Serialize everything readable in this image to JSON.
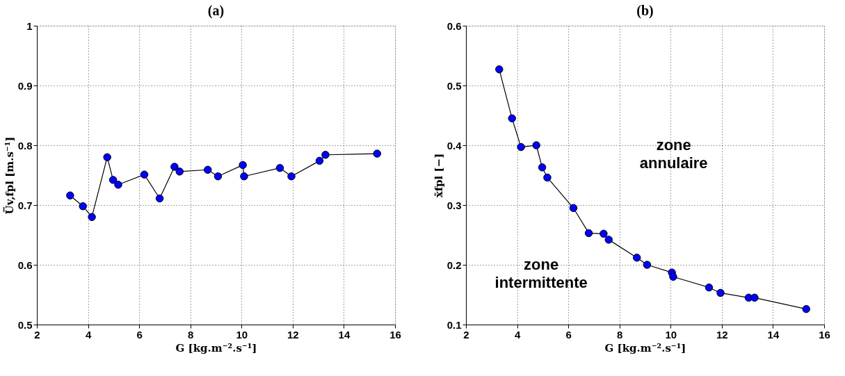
{
  "chart_data": [
    {
      "type": "line",
      "title": "(a)",
      "xlabel": "G [kg.m⁻².s⁻¹]",
      "ylabel": "U̅v,fpl [m.s⁻¹]",
      "x": [
        3.3,
        3.8,
        4.15,
        4.75,
        4.98,
        5.18,
        6.2,
        6.8,
        7.38,
        7.58,
        8.68,
        9.08,
        10.05,
        10.1,
        11.5,
        11.95,
        13.05,
        13.28,
        15.3
      ],
      "series": [
        {
          "color": "#0000ff",
          "values": [
            0.716,
            0.698,
            0.68,
            0.78,
            0.742,
            0.734,
            0.751,
            0.711,
            0.764,
            0.756,
            0.759,
            0.748,
            0.767,
            0.748,
            0.762,
            0.748,
            0.774,
            0.784,
            0.786
          ]
        }
      ],
      "xlim": [
        2,
        16
      ],
      "xticks": [
        2,
        4,
        6,
        8,
        10,
        12,
        14,
        16
      ],
      "ylim": [
        0.5,
        1
      ],
      "yticks": [
        0.5,
        0.6,
        0.7,
        0.8,
        0.9,
        1
      ],
      "grid": true,
      "marker": "circle",
      "line_style": "solid"
    },
    {
      "type": "line",
      "title": "(b)",
      "xlabel": "G [kg.m⁻².s⁻¹]",
      "ylabel": "x̄fpl [−]",
      "x": [
        3.3,
        3.8,
        4.15,
        4.75,
        4.98,
        5.18,
        6.2,
        6.8,
        7.38,
        7.58,
        8.68,
        9.08,
        10.05,
        10.1,
        11.5,
        11.95,
        13.05,
        13.28,
        15.3
      ],
      "series": [
        {
          "color": "#0000ff",
          "values": [
            0.527,
            0.445,
            0.397,
            0.4,
            0.363,
            0.346,
            0.295,
            0.253,
            0.252,
            0.242,
            0.212,
            0.2,
            0.187,
            0.18,
            0.162,
            0.153,
            0.145,
            0.145,
            0.126
          ]
        }
      ],
      "xlim": [
        2,
        16
      ],
      "xticks": [
        2,
        4,
        6,
        8,
        10,
        12,
        14,
        16
      ],
      "ylim": [
        0.1,
        0.6
      ],
      "yticks": [
        0.1,
        0.2,
        0.3,
        0.4,
        0.5,
        0.6
      ],
      "annotations": [
        "zone annulaire",
        "zone intermittente"
      ],
      "grid": true,
      "marker": "circle",
      "line_style": "solid"
    }
  ]
}
